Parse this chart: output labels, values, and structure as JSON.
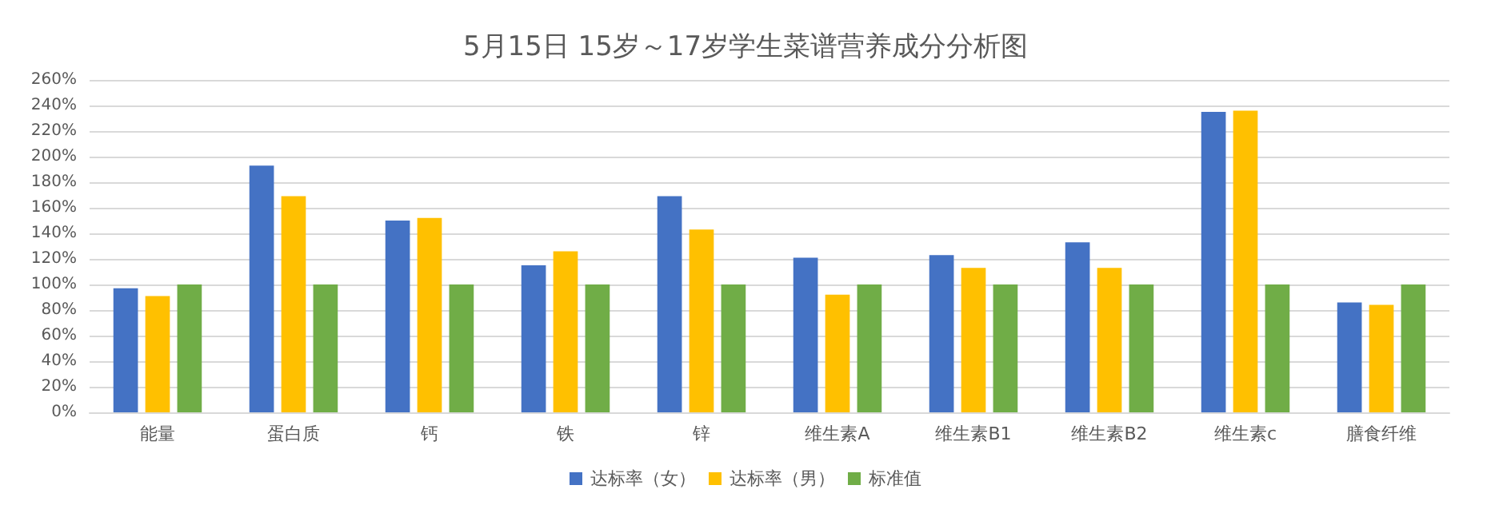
{
  "chart_data": {
    "type": "bar",
    "title": "5月15日 15岁～17岁学生菜谱营养成分分析图",
    "categories": [
      "能量",
      "蛋白质",
      "钙",
      "铁",
      "锌",
      "维生素A",
      "维生素B1",
      "维生素B2",
      "维生素c",
      "膳食纤维"
    ],
    "series": [
      {
        "name": "达标率（女）",
        "color": "#4472c4",
        "values": [
          97,
          193,
          150,
          115,
          169,
          121,
          123,
          133,
          235,
          86
        ]
      },
      {
        "name": "达标率（男）",
        "color": "#ffc000",
        "values": [
          91,
          169,
          152,
          126,
          143,
          92,
          113,
          113,
          236,
          84
        ]
      },
      {
        "name": "标准值",
        "color": "#70ad47",
        "values": [
          100,
          100,
          100,
          100,
          100,
          100,
          100,
          100,
          100,
          100
        ]
      }
    ],
    "ylim": [
      0,
      260
    ],
    "yticks": [
      {
        "value": 0,
        "label": "0%"
      },
      {
        "value": 20,
        "label": "20%"
      },
      {
        "value": 40,
        "label": "40%"
      },
      {
        "value": 60,
        "label": "60%"
      },
      {
        "value": 80,
        "label": "80%"
      },
      {
        "value": 100,
        "label": "100%"
      },
      {
        "value": 120,
        "label": "120%"
      },
      {
        "value": 140,
        "label": "140%"
      },
      {
        "value": 160,
        "label": "160%"
      },
      {
        "value": 180,
        "label": "180%"
      },
      {
        "value": 200,
        "label": "200%"
      },
      {
        "value": 220,
        "label": "220%"
      },
      {
        "value": 240,
        "label": "240%"
      },
      {
        "value": 260,
        "label": "260%"
      }
    ],
    "grid": "y",
    "legend": "bottom"
  }
}
